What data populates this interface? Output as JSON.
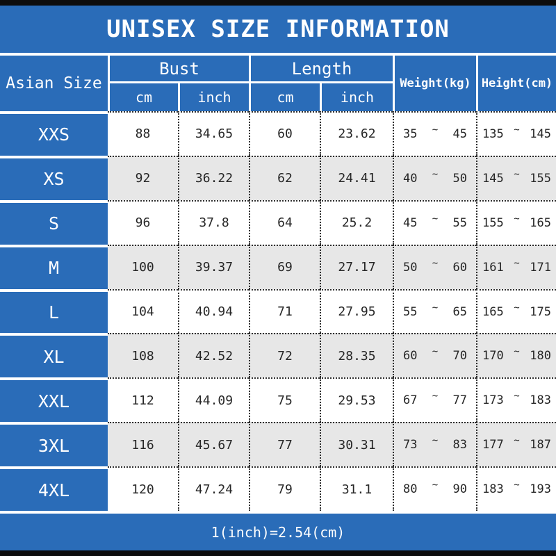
{
  "title": "UNISEX SIZE INFORMATION",
  "footer_note": "1(inch)=2.54(cm)",
  "colors": {
    "blue": "#2a6cb8",
    "alt_row_gray": "#e7e7e7",
    "border_black": "#0d0d0d",
    "text_white": "#ffffff"
  },
  "table": {
    "headers": {
      "asian_size": "Asian Size",
      "bust": "Bust",
      "length": "Length",
      "bust_cm": "cm",
      "bust_inch": "inch",
      "length_cm": "cm",
      "length_inch": "inch",
      "weight": "Weight(kg)",
      "height": "Height(cm)"
    },
    "range_separator": "~",
    "rows": [
      {
        "size": "XXS",
        "bust_cm": "88",
        "bust_inch": "34.65",
        "length_cm": "60",
        "length_inch": "23.62",
        "weight_min": "35",
        "weight_max": "45",
        "height_min": "135",
        "height_max": "145"
      },
      {
        "size": "XS",
        "bust_cm": "92",
        "bust_inch": "36.22",
        "length_cm": "62",
        "length_inch": "24.41",
        "weight_min": "40",
        "weight_max": "50",
        "height_min": "145",
        "height_max": "155"
      },
      {
        "size": "S",
        "bust_cm": "96",
        "bust_inch": "37.8",
        "length_cm": "64",
        "length_inch": "25.2",
        "weight_min": "45",
        "weight_max": "55",
        "height_min": "155",
        "height_max": "165"
      },
      {
        "size": "M",
        "bust_cm": "100",
        "bust_inch": "39.37",
        "length_cm": "69",
        "length_inch": "27.17",
        "weight_min": "50",
        "weight_max": "60",
        "height_min": "161",
        "height_max": "171"
      },
      {
        "size": "L",
        "bust_cm": "104",
        "bust_inch": "40.94",
        "length_cm": "71",
        "length_inch": "27.95",
        "weight_min": "55",
        "weight_max": "65",
        "height_min": "165",
        "height_max": "175"
      },
      {
        "size": "XL",
        "bust_cm": "108",
        "bust_inch": "42.52",
        "length_cm": "72",
        "length_inch": "28.35",
        "weight_min": "60",
        "weight_max": "70",
        "height_min": "170",
        "height_max": "180"
      },
      {
        "size": "XXL",
        "bust_cm": "112",
        "bust_inch": "44.09",
        "length_cm": "75",
        "length_inch": "29.53",
        "weight_min": "67",
        "weight_max": "77",
        "height_min": "173",
        "height_max": "183"
      },
      {
        "size": "3XL",
        "bust_cm": "116",
        "bust_inch": "45.67",
        "length_cm": "77",
        "length_inch": "30.31",
        "weight_min": "73",
        "weight_max": "83",
        "height_min": "177",
        "height_max": "187"
      },
      {
        "size": "4XL",
        "bust_cm": "120",
        "bust_inch": "47.24",
        "length_cm": "79",
        "length_inch": "31.1",
        "weight_min": "80",
        "weight_max": "90",
        "height_min": "183",
        "height_max": "193"
      }
    ]
  },
  "chart_data": {
    "type": "table",
    "title": "UNISEX SIZE INFORMATION",
    "columns": [
      "Asian Size",
      "Bust cm",
      "Bust inch",
      "Length cm",
      "Length inch",
      "Weight(kg)",
      "Height(cm)"
    ],
    "rows": [
      [
        "XXS",
        "88",
        "34.65",
        "60",
        "23.62",
        "35~45",
        "135~145"
      ],
      [
        "XS",
        "92",
        "36.22",
        "62",
        "24.41",
        "40~50",
        "145~155"
      ],
      [
        "S",
        "96",
        "37.8",
        "64",
        "25.2",
        "45~55",
        "155~165"
      ],
      [
        "M",
        "100",
        "39.37",
        "69",
        "27.17",
        "50~60",
        "161~171"
      ],
      [
        "L",
        "104",
        "40.94",
        "71",
        "27.95",
        "55~65",
        "165~175"
      ],
      [
        "XL",
        "108",
        "42.52",
        "72",
        "28.35",
        "60~70",
        "170~180"
      ],
      [
        "XXL",
        "112",
        "44.09",
        "75",
        "29.53",
        "67~77",
        "173~183"
      ],
      [
        "3XL",
        "116",
        "45.67",
        "77",
        "30.31",
        "73~83",
        "177~187"
      ],
      [
        "4XL",
        "120",
        "47.24",
        "79",
        "31.1",
        "80~90",
        "183~193"
      ]
    ],
    "note": "1(inch)=2.54(cm)"
  }
}
